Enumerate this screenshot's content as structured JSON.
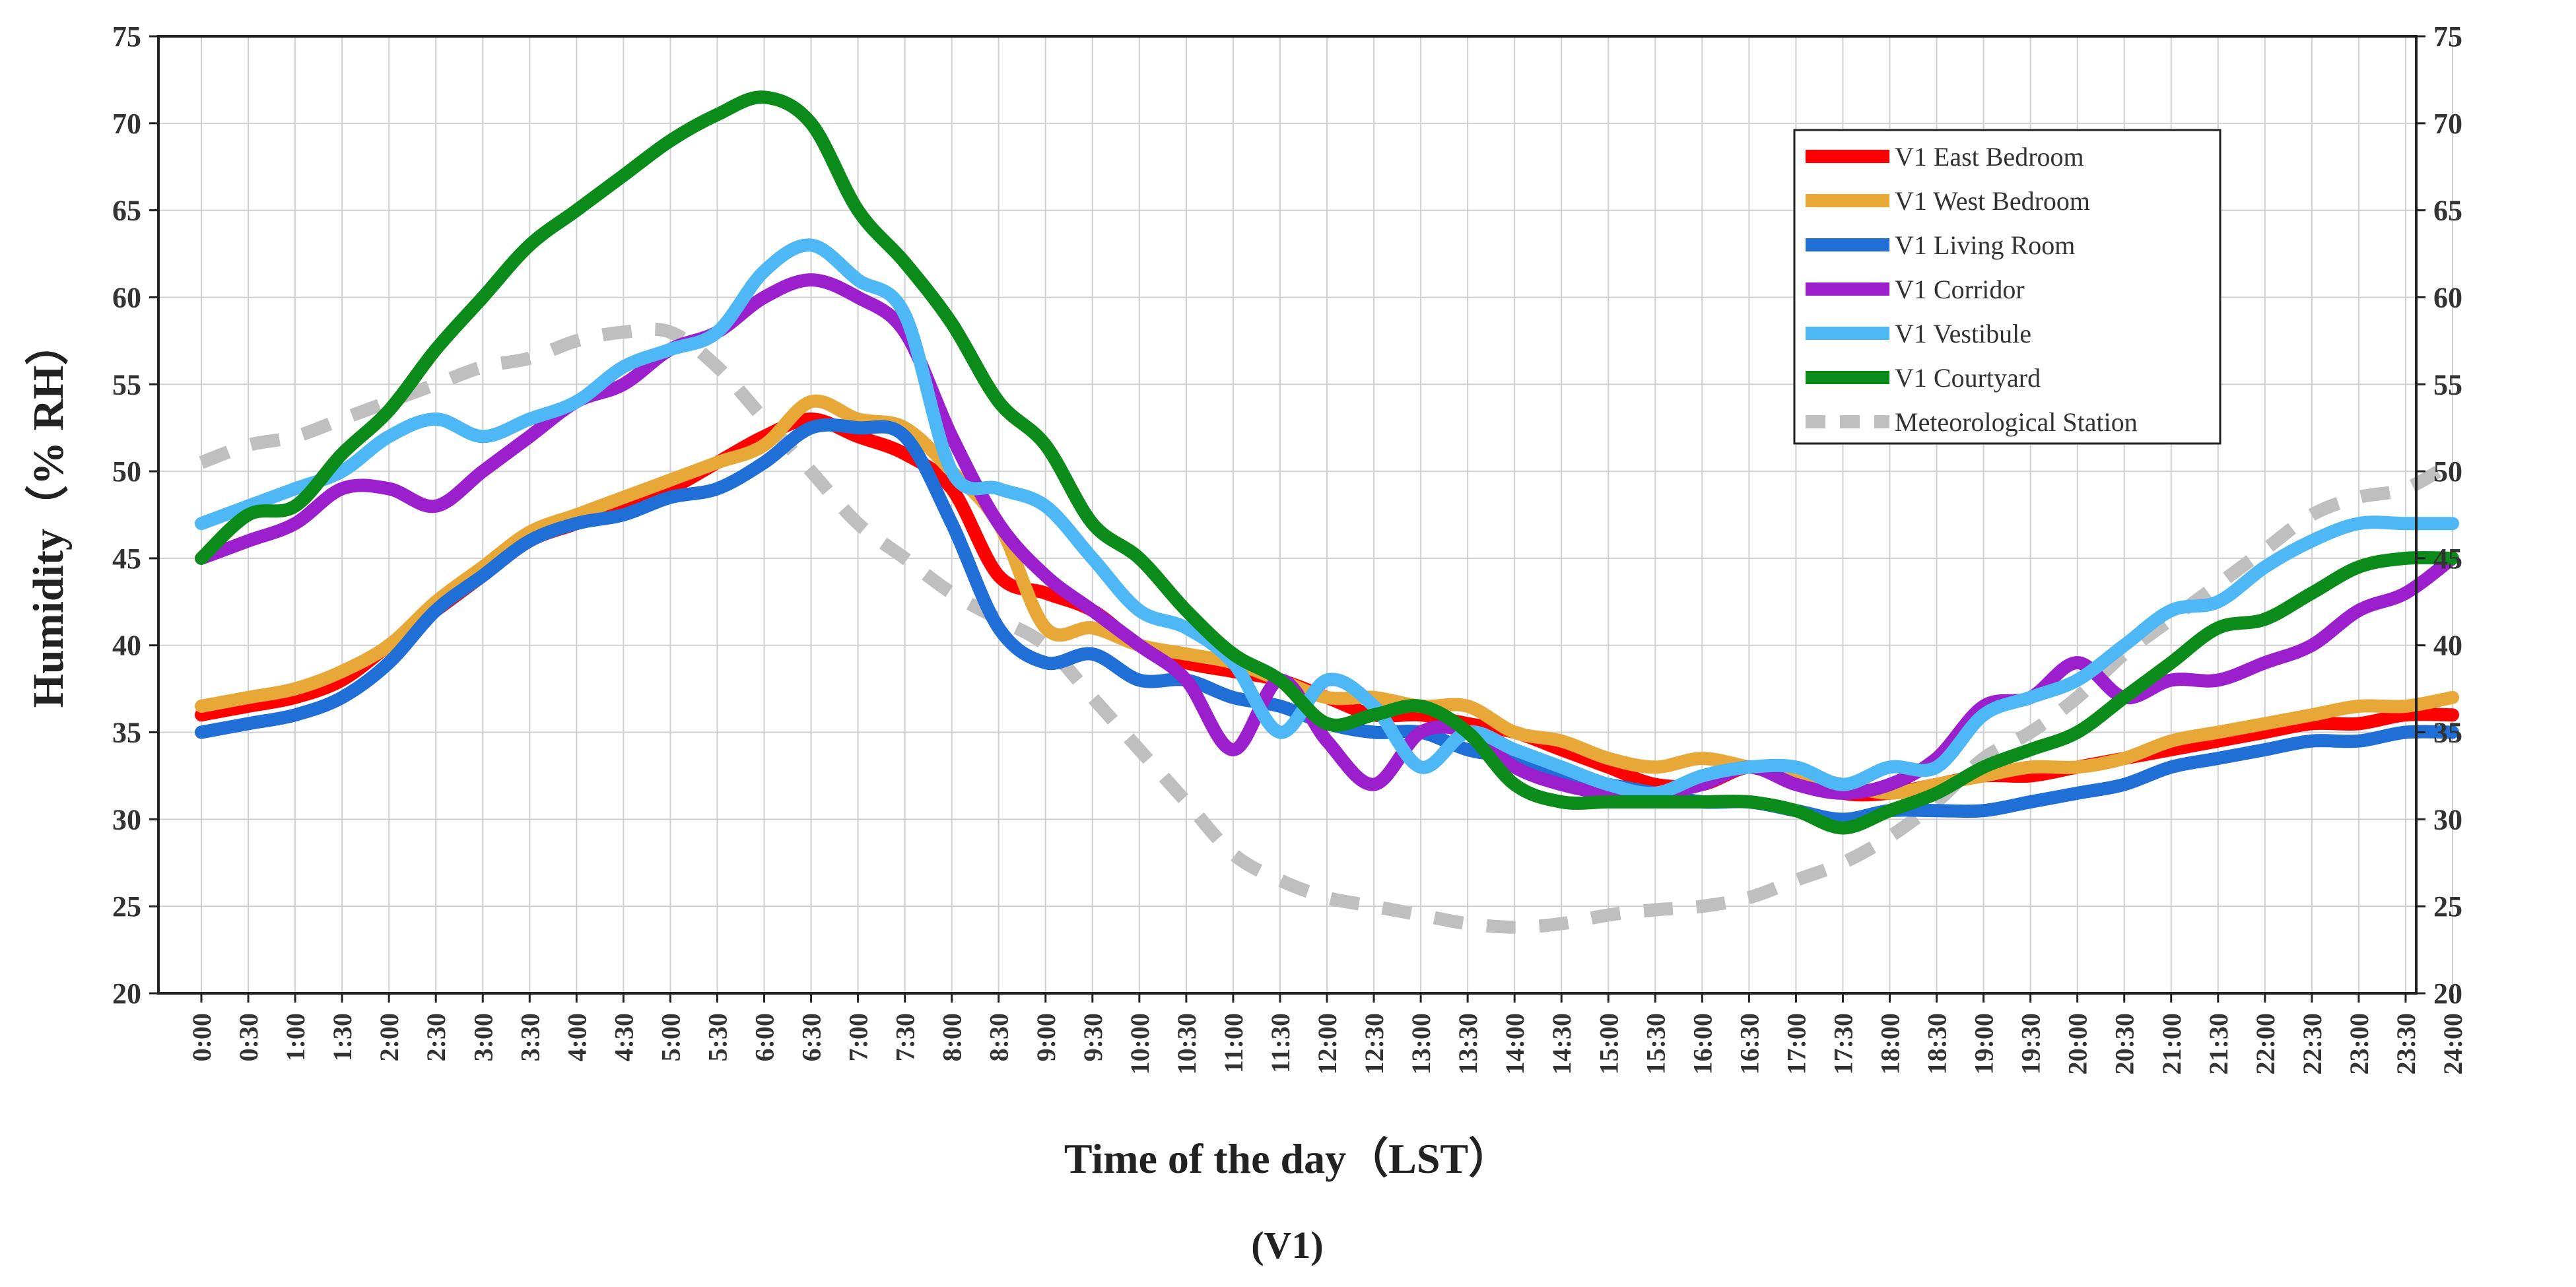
{
  "chart_data": {
    "type": "line",
    "caption": "(V1)",
    "xlabel": "Time of the day（LST）",
    "ylabel": "Humidity（% RH）",
    "ylim": [
      20,
      75
    ],
    "yticks": [
      20,
      25,
      30,
      35,
      40,
      45,
      50,
      55,
      60,
      65,
      70,
      75
    ],
    "grid": true,
    "legend_position": "top-right",
    "x": [
      "0:00",
      "0:30",
      "1:00",
      "1:30",
      "2:00",
      "2:30",
      "3:00",
      "3:30",
      "4:00",
      "4:30",
      "5:00",
      "5:30",
      "6:00",
      "6:30",
      "7:00",
      "7:30",
      "8:00",
      "8:30",
      "9:00",
      "9:30",
      "10:00",
      "10:30",
      "11:00",
      "11:30",
      "12:00",
      "12:30",
      "13:00",
      "13:30",
      "14:00",
      "14:30",
      "15:00",
      "15:30",
      "16:00",
      "16:30",
      "17:00",
      "17:30",
      "18:00",
      "18:30",
      "19:00",
      "19:30",
      "20:00",
      "20:30",
      "21:00",
      "21:30",
      "22:00",
      "22:30",
      "23:00",
      "23:30",
      "24:00"
    ],
    "series": [
      {
        "name": "V1 East Bedroom",
        "color": "#ff0000",
        "dashed": false,
        "values": [
          36,
          36.5,
          37,
          38,
          40,
          42,
          44,
          46,
          47,
          48,
          49,
          50.5,
          52,
          53,
          52,
          51,
          49,
          44,
          43,
          42,
          40,
          39,
          38.5,
          38,
          37,
          36,
          36,
          35.5,
          35,
          34,
          33,
          32,
          32,
          33,
          32.5,
          31.5,
          31.5,
          32,
          32.5,
          32.5,
          33,
          33.5,
          34,
          34.5,
          35,
          35.5,
          35.5,
          36,
          36
        ]
      },
      {
        "name": "V1 West Bedroom",
        "color": "#e8a838",
        "dashed": false,
        "values": [
          36.5,
          37,
          37.5,
          38.5,
          40,
          42.5,
          44.5,
          46.5,
          47.5,
          48.5,
          49.5,
          50.5,
          51.5,
          54,
          53,
          52.5,
          50,
          47,
          41,
          41,
          40,
          39.5,
          39,
          38,
          37,
          37,
          36.5,
          36.5,
          35,
          34.5,
          33.5,
          33,
          33.5,
          33,
          32.5,
          32,
          31.5,
          32,
          32.5,
          33,
          33,
          33.5,
          34.5,
          35,
          35.5,
          36,
          36.5,
          36.5,
          37
        ]
      },
      {
        "name": "V1 Living Room",
        "color": "#1f6fd6",
        "dashed": false,
        "values": [
          35,
          35.5,
          36,
          37,
          39,
          42,
          44,
          46,
          47,
          47.5,
          48.5,
          49,
          50.5,
          52.5,
          52.5,
          52,
          47,
          41,
          39,
          39.5,
          38,
          38,
          37,
          36.5,
          35.5,
          35,
          35,
          34,
          33.5,
          32.5,
          32,
          31.5,
          31,
          31,
          30.5,
          30,
          30.5,
          30.5,
          30.5,
          31,
          31.5,
          32,
          33,
          33.5,
          34,
          34.5,
          34.5,
          35,
          35
        ]
      },
      {
        "name": "V1 Corridor",
        "color": "#9b1fcc",
        "dashed": false,
        "values": [
          45,
          46,
          47,
          49,
          49,
          48,
          50,
          52,
          54,
          55,
          57,
          58,
          60,
          61,
          60,
          58,
          52,
          47,
          44,
          42,
          40,
          38,
          34,
          38,
          34.5,
          32,
          35,
          35,
          33,
          32,
          31.5,
          31.5,
          32,
          33,
          32,
          31.5,
          32,
          33.5,
          36.5,
          37,
          39,
          37,
          38,
          38,
          39,
          40,
          42,
          43,
          45
        ]
      },
      {
        "name": "V1 Vestibule",
        "color": "#4db8f5",
        "dashed": false,
        "values": [
          47,
          48,
          49,
          50,
          52,
          53,
          52,
          53,
          54,
          56,
          57,
          58,
          61.5,
          63,
          61,
          59,
          50,
          49,
          48,
          45,
          42,
          41,
          39,
          35,
          38,
          36.5,
          33,
          35,
          34,
          33,
          32,
          31.5,
          32.5,
          33,
          33,
          32,
          33,
          33,
          36,
          37,
          38,
          40,
          42,
          42.5,
          44.5,
          46,
          47,
          47,
          47
        ]
      },
      {
        "name": "V1 Courtyard",
        "color": "#0b8c1a",
        "dashed": false,
        "values": [
          45,
          47.5,
          48,
          51,
          53.5,
          57,
          60,
          63,
          65,
          67,
          69,
          70.5,
          71.5,
          70,
          65,
          62,
          58.5,
          54,
          51.5,
          47,
          45,
          42,
          39.5,
          38,
          35.5,
          36,
          36.5,
          35,
          32,
          31,
          31,
          31,
          31,
          31,
          30.5,
          29.5,
          30.5,
          31.5,
          33,
          34,
          35,
          37,
          39,
          41,
          41.5,
          43,
          44.5,
          45,
          45
        ]
      },
      {
        "name": "Meteorological Station",
        "color": "#bfbfbf",
        "dashed": true,
        "values": [
          50.5,
          51.5,
          52,
          53,
          54,
          55,
          56,
          56.5,
          57.5,
          58,
          58,
          56,
          53,
          50,
          47,
          45,
          43,
          41.5,
          40,
          37,
          34,
          31,
          28,
          26.5,
          25.5,
          25,
          24.5,
          24,
          23.8,
          24,
          24.5,
          24.8,
          25,
          25.5,
          26.5,
          27.5,
          29,
          31,
          33.5,
          35,
          37,
          39.5,
          41.5,
          43.5,
          45.5,
          47.5,
          48.5,
          49,
          50.5
        ]
      }
    ]
  }
}
